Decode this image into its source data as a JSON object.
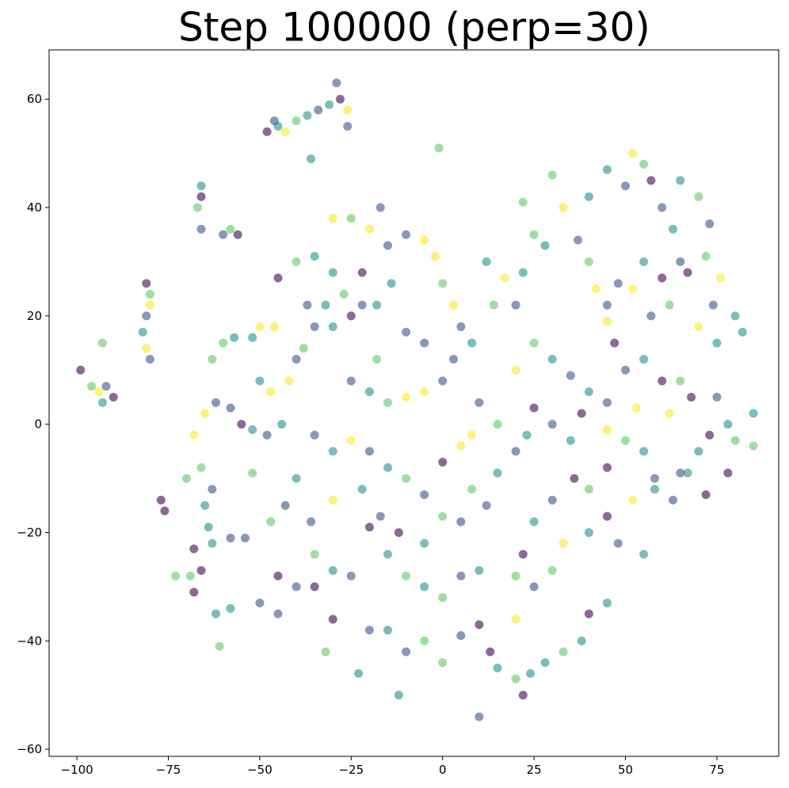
{
  "chart_data": {
    "type": "scatter",
    "title": "Step 100000 (perp=30)",
    "xlim": [
      -107.6,
      91.9
    ],
    "ylim": [
      -61.3,
      69.1
    ],
    "xticks": [
      {
        "value": -100,
        "label": "−100"
      },
      {
        "value": -75,
        "label": "−75"
      },
      {
        "value": -50,
        "label": "−50"
      },
      {
        "value": -25,
        "label": "−25"
      },
      0,
      25,
      50,
      75
    ],
    "yticks": [
      {
        "value": -60,
        "label": "−60"
      },
      {
        "value": -40,
        "label": "−40"
      },
      {
        "value": -20,
        "label": "−20"
      },
      0,
      20,
      40,
      60
    ],
    "grid": false,
    "alpha": 0.6,
    "series": [
      {
        "x": [
          -48,
          -45,
          -43,
          -40,
          -37,
          -34,
          -31,
          -28,
          -29,
          -26,
          -26,
          -46,
          -36,
          -1,
          -66,
          -66,
          -67,
          -66,
          -60,
          -58,
          -56,
          -81,
          -80,
          -80,
          -81,
          -82,
          -81,
          -80,
          -99,
          -96,
          -94,
          -93,
          -92,
          -90,
          -93,
          -77,
          -76,
          -73,
          -69,
          -68,
          -68,
          -66,
          -64,
          -65,
          -63,
          -62,
          -61,
          -58,
          -58,
          -54,
          -70,
          -66,
          -63,
          -63,
          -60,
          -57,
          -50,
          -46,
          -52,
          -68,
          -65,
          -62,
          -58,
          -55,
          -52,
          -48,
          -44,
          -50,
          -47,
          -42,
          -40,
          -38,
          -35,
          -30,
          -40,
          -35,
          -30,
          -37,
          -32,
          -27,
          -25,
          -22,
          -18,
          -22,
          -25,
          -20,
          -17,
          -15,
          -10,
          -5,
          -2,
          0,
          3,
          5,
          8,
          -14,
          -10,
          -5,
          -30,
          -45,
          -18,
          -25,
          -20,
          -15,
          -10,
          -5,
          0,
          3,
          -35,
          -30,
          -25,
          -20,
          -15,
          -10,
          -5,
          0,
          5,
          8,
          12,
          15,
          -40,
          -43,
          -36,
          -30,
          -22,
          -17,
          -12,
          -5,
          0,
          5,
          -35,
          -30,
          -25,
          -20,
          -15,
          -10,
          -5,
          0,
          5,
          10,
          -45,
          -40,
          -35,
          -30,
          -20,
          -15,
          -10,
          -5,
          0,
          5,
          10,
          13,
          -45,
          -50,
          -32,
          -23,
          -12,
          10,
          -47,
          -52,
          20,
          23,
          25,
          30,
          35,
          38,
          20,
          25,
          30,
          35,
          40,
          45,
          20,
          22,
          25,
          28,
          22,
          30,
          33,
          37,
          40,
          42,
          45,
          40,
          45,
          50,
          52,
          55,
          57,
          60,
          63,
          65,
          70,
          73,
          72,
          65,
          60,
          55,
          52,
          48,
          57,
          62,
          67,
          70,
          75,
          74,
          80,
          82,
          76,
          75,
          78,
          80,
          73,
          70,
          65,
          58,
          55,
          50,
          45,
          45,
          40,
          36,
          30,
          25,
          22,
          20,
          25,
          30,
          33,
          40,
          45,
          48,
          55,
          52,
          58,
          63,
          67,
          72,
          78,
          85,
          85,
          40,
          45,
          38,
          33,
          28,
          24,
          20,
          22,
          15,
          20,
          60,
          65,
          55,
          50,
          47,
          45,
          53,
          62,
          68,
          14,
          17,
          12,
          10,
          15,
          8
        ],
        "values": [
          54,
          55,
          54,
          56,
          57,
          58,
          59,
          60,
          63,
          58,
          55,
          56,
          49,
          51,
          44,
          42,
          40,
          36,
          35,
          36,
          35,
          26,
          24,
          22,
          20,
          17,
          14,
          12,
          10,
          7,
          6,
          4,
          7,
          5,
          15,
          -14,
          -16,
          -28,
          -28,
          -31,
          -23,
          -27,
          -19,
          -15,
          -22,
          -35,
          -41,
          -34,
          -21,
          -21,
          -10,
          -8,
          -12,
          12,
          15,
          16,
          18,
          18,
          16,
          -2,
          2,
          4,
          3,
          0,
          -1,
          -2,
          0,
          8,
          6,
          8,
          12,
          14,
          18,
          18,
          30,
          31,
          28,
          22,
          22,
          24,
          20,
          22,
          22,
          28,
          38,
          36,
          40,
          33,
          35,
          34,
          31,
          26,
          22,
          18,
          15,
          26,
          17,
          15,
          38,
          27,
          12,
          8,
          6,
          4,
          5,
          6,
          8,
          12,
          -2,
          -5,
          -3,
          -5,
          -8,
          -10,
          -13,
          -7,
          -4,
          -12,
          -15,
          -9,
          -10,
          -15,
          -18,
          -14,
          -12,
          -17,
          -20,
          -22,
          -17,
          -18,
          -24,
          -27,
          -28,
          -19,
          -24,
          -28,
          -30,
          -32,
          -28,
          -27,
          -28,
          -30,
          -30,
          -36,
          -38,
          -38,
          -42,
          -40,
          -44,
          -39,
          -37,
          -42,
          -35,
          -33,
          -42,
          -46,
          -50,
          -54,
          -18,
          -9,
          -5,
          -2,
          3,
          0,
          -3,
          2,
          10,
          15,
          12,
          9,
          6,
          4,
          22,
          28,
          35,
          33,
          41,
          46,
          40,
          34,
          30,
          25,
          22,
          42,
          47,
          44,
          50,
          48,
          45,
          40,
          36,
          45,
          42,
          37,
          31,
          30,
          27,
          30,
          25,
          26,
          20,
          22,
          28,
          18,
          15,
          22,
          20,
          17,
          27,
          5,
          0,
          -3,
          -2,
          -5,
          -9,
          -10,
          -5,
          -3,
          -1,
          -8,
          -12,
          -10,
          -14,
          -18,
          -24,
          -28,
          -30,
          -27,
          -22,
          -20,
          -17,
          -22,
          -24,
          -14,
          -12,
          -14,
          -9,
          -13,
          -9,
          -4,
          2,
          -35,
          -33,
          -40,
          -42,
          -44,
          -46,
          -47,
          -50,
          -45,
          -36,
          8,
          8,
          12,
          10,
          15,
          19,
          3,
          2,
          5,
          22,
          27,
          30,
          4,
          0,
          -2
        ],
        "colors": [
          "#440154",
          "#21918c",
          "#fde725",
          "#5ec962",
          "#21918c",
          "#3b528b",
          "#21918c",
          "#440154",
          "#3b528b",
          "#fde725",
          "#3b528b",
          "#3b528b",
          "#21918c",
          "#5ec962",
          "#21918c",
          "#440154",
          "#5ec962",
          "#3b528b",
          "#3b528b",
          "#5ec962",
          "#440154",
          "#440154",
          "#5ec962",
          "#fde725",
          "#3b528b",
          "#21918c",
          "#fde725",
          "#3b528b",
          "#440154",
          "#5ec962",
          "#fde725",
          "#21918c",
          "#3b528b",
          "#440154",
          "#5ec962",
          "#440154",
          "#440154",
          "#5ec962",
          "#5ec962",
          "#440154",
          "#440154",
          "#440154",
          "#21918c",
          "#21918c",
          "#21918c",
          "#21918c",
          "#5ec962",
          "#21918c",
          "#3b528b",
          "#3b528b",
          "#5ec962",
          "#5ec962",
          "#3b528b",
          "#5ec962",
          "#5ec962",
          "#21918c",
          "#fde725",
          "#fde725",
          "#21918c",
          "#fde725",
          "#fde725",
          "#3b528b",
          "#3b528b",
          "#440154",
          "#21918c",
          "#3b528b",
          "#21918c",
          "#21918c",
          "#fde725",
          "#fde725",
          "#3b528b",
          "#5ec962",
          "#3b528b",
          "#21918c",
          "#5ec962",
          "#21918c",
          "#21918c",
          "#3b528b",
          "#21918c",
          "#5ec962",
          "#440154",
          "#3b528b",
          "#21918c",
          "#440154",
          "#5ec962",
          "#fde725",
          "#3b528b",
          "#3b528b",
          "#3b528b",
          "#fde725",
          "#fde725",
          "#5ec962",
          "#fde725",
          "#3b528b",
          "#21918c",
          "#21918c",
          "#3b528b",
          "#3b528b",
          "#fde725",
          "#440154",
          "#5ec962",
          "#3b528b",
          "#21918c",
          "#5ec962",
          "#fde725",
          "#fde725",
          "#3b528b",
          "#3b528b",
          "#3b528b",
          "#21918c",
          "#fde725",
          "#3b528b",
          "#21918c",
          "#5ec962",
          "#3b528b",
          "#440154",
          "#fde725",
          "#5ec962",
          "#3b528b",
          "#21918c",
          "#21918c",
          "#3b528b",
          "#3b528b",
          "#fde725",
          "#21918c",
          "#3b528b",
          "#440154",
          "#21918c",
          "#5ec962",
          "#3b528b",
          "#5ec962",
          "#21918c",
          "#3b528b",
          "#440154",
          "#21918c",
          "#5ec962",
          "#21918c",
          "#5ec962",
          "#3b528b",
          "#21918c",
          "#440154",
          "#3b528b",
          "#440154",
          "#440154",
          "#3b528b",
          "#21918c",
          "#3b528b",
          "#5ec962",
          "#5ec962",
          "#3b528b",
          "#440154",
          "#440154",
          "#3b528b",
          "#3b528b",
          "#5ec962",
          "#21918c",
          "#21918c",
          "#3b528b",
          "#5ec962",
          "#5ec962",
          "#3b528b",
          "#21918c",
          "#440154",
          "#3b528b",
          "#21918c",
          "#440154",
          "#fde725",
          "#5ec962",
          "#21918c",
          "#3b528b",
          "#21918c",
          "#3b528b",
          "#3b528b",
          "#21918c",
          "#5ec962",
          "#21918c",
          "#5ec962",
          "#5ec962",
          "#fde725",
          "#3b528b",
          "#5ec962",
          "#fde725",
          "#3b528b",
          "#21918c",
          "#21918c",
          "#3b528b",
          "#fde725",
          "#5ec962",
          "#440154",
          "#3b528b",
          "#21918c",
          "#21918c",
          "#5ec962",
          "#3b528b",
          "#5ec962",
          "#3b528b",
          "#440154",
          "#21918c",
          "#fde725",
          "#3b528b",
          "#3b528b",
          "#5ec962",
          "#440154",
          "#fde725",
          "#21918c",
          "#3b528b",
          "#21918c",
          "#21918c",
          "#fde725",
          "#3b528b",
          "#21918c",
          "#5ec962",
          "#440154",
          "#21918c",
          "#3b528b",
          "#3b528b",
          "#21918c",
          "#5ec962",
          "#fde725",
          "#440154",
          "#5ec962",
          "#440154",
          "#3b528b",
          "#21918c",
          "#440154",
          "#5ec962",
          "#3b528b",
          "#5ec962",
          "#fde725",
          "#21918c",
          "#440154",
          "#3b528b",
          "#21918c",
          "#fde725",
          "#21918c",
          "#3b528b",
          "#21918c",
          "#440154",
          "#440154",
          "#5ec962",
          "#21918c",
          "#440154",
          "#21918c",
          "#21918c",
          "#5ec962",
          "#21918c",
          "#21918c",
          "#5ec962",
          "#440154",
          "#21918c",
          "#fde725",
          "#440154",
          "#5ec962",
          "#21918c",
          "#3b528b",
          "#440154",
          "#fde725",
          "#fde725",
          "#fde725",
          "#440154",
          "#5ec962",
          "#fde725",
          "#21918c",
          "#3b528b",
          "#5ec962",
          "#fde725"
        ]
      }
    ]
  }
}
